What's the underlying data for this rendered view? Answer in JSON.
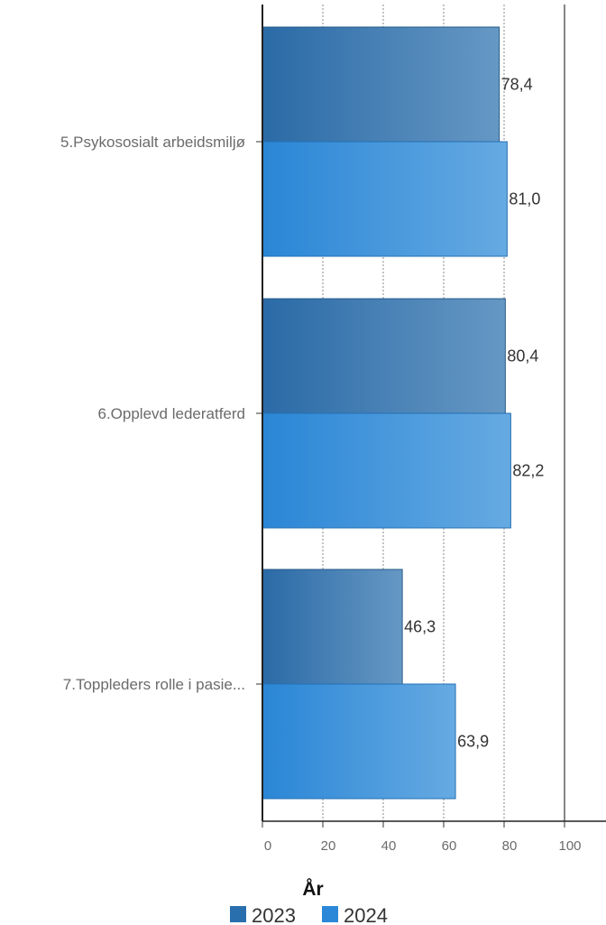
{
  "chart_data": {
    "type": "bar",
    "orientation": "horizontal",
    "categories": [
      "5.Psykososialt arbeidsmiljø",
      "6.Opplevd lederatferd",
      "7.Toppleders rolle i pasie..."
    ],
    "series": [
      {
        "name": "2023",
        "values": [
          78.4,
          80.4,
          46.3
        ],
        "labels": [
          "78,4",
          "80,4",
          "46,3"
        ],
        "color": "#2a6fad"
      },
      {
        "name": "2024",
        "values": [
          81.0,
          82.2,
          63.9
        ],
        "labels": [
          "81,0",
          "82,2",
          "63,9"
        ],
        "color": "#2b88d8"
      }
    ],
    "xticks": [
      0,
      20,
      40,
      60,
      80,
      100
    ],
    "xtick_labels": [
      "0",
      "20",
      "40",
      "60",
      "80",
      "100"
    ],
    "xlim": [
      0,
      100
    ],
    "grid": true,
    "legend": {
      "title": "År",
      "position": "bottom-center"
    }
  }
}
